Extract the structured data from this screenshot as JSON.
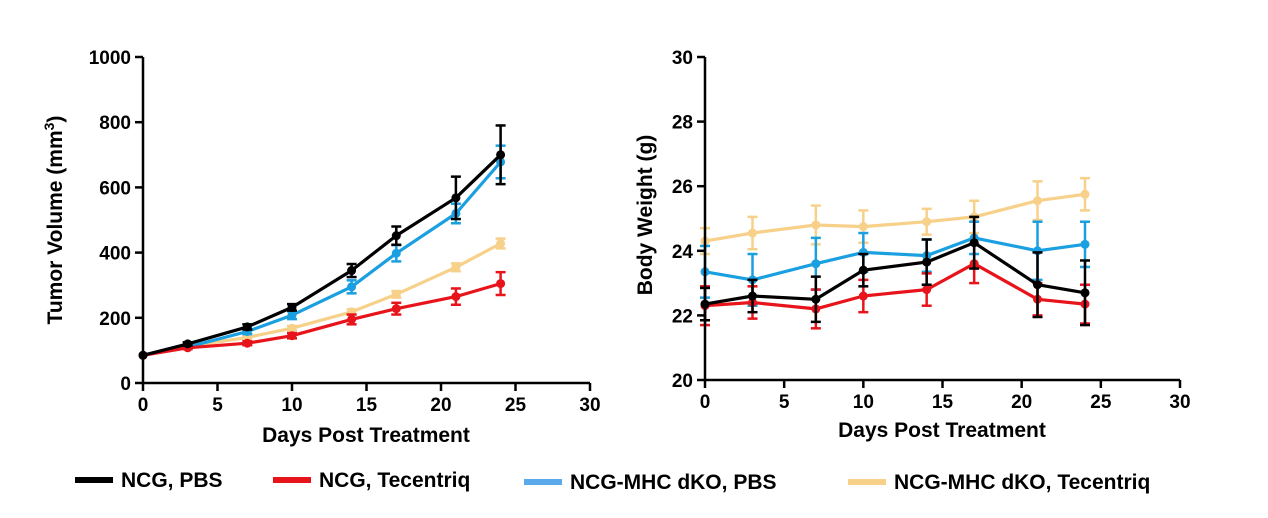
{
  "chart_data": [
    {
      "type": "line",
      "title": "",
      "xlabel": "Days Post Treatment",
      "ylabel": "Tumor Volume (mm",
      "ylabel_sup": "3",
      "ylabel_close": ")",
      "xlim": [
        0,
        30
      ],
      "ylim": [
        0,
        1000
      ],
      "xticks": [
        "0",
        "5",
        "10",
        "15",
        "20",
        "25",
        "30"
      ],
      "yticks": [
        "0",
        "200",
        "400",
        "600",
        "800",
        "1000"
      ],
      "grid": false,
      "x": [
        0,
        3,
        7,
        10,
        14,
        17,
        21,
        24
      ],
      "series": [
        {
          "name": "NCG, PBS",
          "values": [
            85,
            120,
            172,
            232,
            345,
            452,
            568,
            700
          ],
          "errors": [
            0,
            5,
            8,
            10,
            20,
            28,
            65,
            90
          ]
        },
        {
          "name": "NCG, Tecentriq",
          "values": [
            85,
            108,
            122,
            145,
            195,
            228,
            265,
            305
          ],
          "errors": [
            0,
            4,
            6,
            8,
            15,
            18,
            25,
            35
          ]
        },
        {
          "name": "NCG-MHC dKO, PBS",
          "values": [
            85,
            110,
            158,
            208,
            295,
            398,
            520,
            678
          ],
          "errors": [
            0,
            5,
            8,
            12,
            20,
            25,
            30,
            50
          ]
        },
        {
          "name": "NCG-MHC dKO, Tecentriq",
          "values": [
            85,
            112,
            140,
            168,
            218,
            272,
            355,
            428
          ],
          "errors": [
            0,
            4,
            5,
            7,
            8,
            10,
            12,
            15
          ]
        }
      ]
    },
    {
      "type": "line",
      "title": "",
      "xlabel": "Days Post Treatment",
      "ylabel": "Body Weight (g)",
      "xlim": [
        0,
        30
      ],
      "ylim": [
        20,
        30
      ],
      "xticks": [
        "0",
        "5",
        "10",
        "15",
        "20",
        "25",
        "30"
      ],
      "yticks": [
        "20",
        "22",
        "24",
        "26",
        "28",
        "30"
      ],
      "grid": false,
      "x": [
        0,
        3,
        7,
        10,
        14,
        17,
        21,
        24
      ],
      "series": [
        {
          "name": "NCG, PBS",
          "values": [
            22.35,
            22.6,
            22.5,
            23.4,
            23.65,
            24.25,
            22.95,
            22.7
          ],
          "errors": [
            0.5,
            0.5,
            0.7,
            0.5,
            0.7,
            0.8,
            1.0,
            1.0
          ]
        },
        {
          "name": "NCG, Tecentriq",
          "values": [
            22.3,
            22.4,
            22.2,
            22.6,
            22.8,
            23.6,
            22.5,
            22.35
          ],
          "errors": [
            0.6,
            0.5,
            0.6,
            0.5,
            0.5,
            0.6,
            0.5,
            0.6
          ]
        },
        {
          "name": "NCG-MHC dKO, PBS",
          "values": [
            23.35,
            23.1,
            23.6,
            23.95,
            23.85,
            24.4,
            24.0,
            24.2
          ],
          "errors": [
            0.8,
            0.8,
            0.8,
            0.6,
            0.5,
            0.5,
            0.9,
            0.7
          ]
        },
        {
          "name": "NCG-MHC dKO, Tecentriq",
          "values": [
            24.3,
            24.55,
            24.8,
            24.75,
            24.9,
            25.05,
            25.55,
            25.75
          ],
          "errors": [
            0.4,
            0.5,
            0.6,
            0.5,
            0.4,
            0.5,
            0.6,
            0.5
          ]
        }
      ]
    }
  ],
  "legend": {
    "placement": "bottom",
    "items": [
      {
        "label": "NCG, PBS",
        "color": "#000000"
      },
      {
        "label": "NCG, Tecentriq",
        "color": "#e8141b"
      },
      {
        "label": "NCG-MHC dKO, PBS",
        "color": "#1a9fe0"
      },
      {
        "label": "NCG-MHC dKO, Tecentriq",
        "color": "#f7d08a"
      }
    ]
  },
  "colors": {
    "NCG, PBS": "#000000",
    "NCG, Tecentriq": "#e8141b",
    "NCG-MHC dKO, PBS": "#1a9fe0",
    "NCG-MHC dKO, Tecentriq": "#f7d08a",
    "legend_swatch_blue": "#5aa9ea"
  }
}
